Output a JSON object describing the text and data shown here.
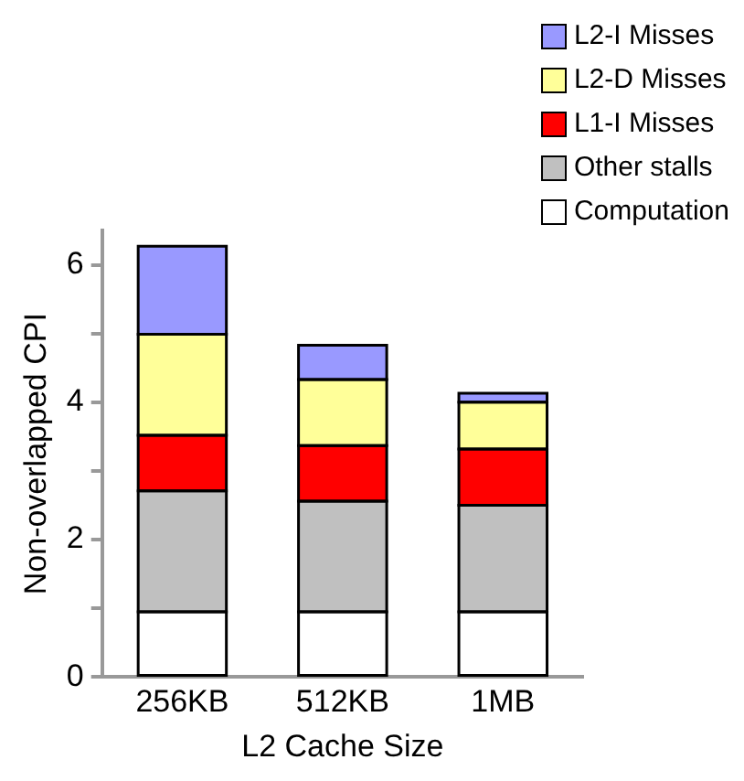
{
  "chart_data": {
    "type": "bar",
    "stacked": true,
    "xlabel": "L2 Cache Size",
    "ylabel": "Non-overlapped CPI",
    "categories": [
      "256KB",
      "512KB",
      "1MB"
    ],
    "series": [
      {
        "name": "Computation",
        "color": "#ffffff",
        "values": [
          0.95,
          0.95,
          0.95
        ]
      },
      {
        "name": "Other stalls",
        "color": "#c0c0c0",
        "values": [
          1.76,
          1.61,
          1.55
        ]
      },
      {
        "name": "L1-I Misses",
        "color": "#ff0000",
        "values": [
          0.81,
          0.81,
          0.82
        ]
      },
      {
        "name": "L2-D Misses",
        "color": "#ffff99",
        "values": [
          1.47,
          0.96,
          0.68
        ]
      },
      {
        "name": "L2-I Misses",
        "color": "#9999ff",
        "values": [
          1.28,
          0.5,
          0.13
        ]
      }
    ],
    "ylim": [
      0,
      6.5
    ],
    "yticks": [
      0,
      {
        "value": 1,
        "label": null
      },
      2,
      {
        "value": 3,
        "label": null
      },
      4,
      {
        "value": 5,
        "label": null
      },
      6
    ],
    "grid": false,
    "legend": "top right"
  }
}
